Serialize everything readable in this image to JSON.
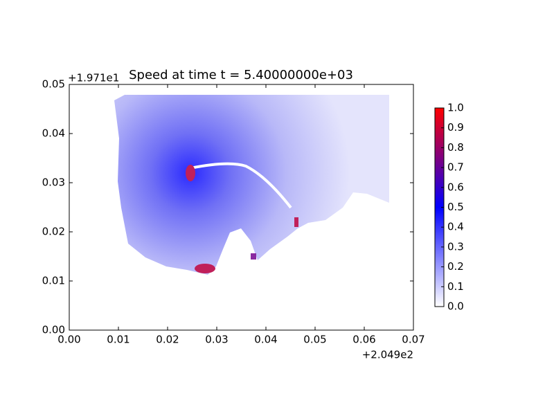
{
  "chart_data": {
    "type": "heatmap",
    "title": "Speed at time t = 5.40000000e+03",
    "x_offset_label": "+2.049e2",
    "y_offset_label": "+1.971e1",
    "xlim": [
      0,
      0.07
    ],
    "xticks": [
      {
        "value": 0,
        "label": "0.00"
      },
      {
        "value": 0.01,
        "label": "0.01"
      },
      {
        "value": 0.02,
        "label": "0.02"
      },
      {
        "value": 0.03,
        "label": "0.03"
      },
      {
        "value": 0.04,
        "label": "0.04"
      },
      {
        "value": 0.05,
        "label": "0.05"
      },
      {
        "value": 0.06,
        "label": "0.06"
      },
      {
        "value": 0.07,
        "label": "0.07"
      }
    ],
    "ylim": [
      0,
      0.05
    ],
    "yticks": [
      {
        "value": 0,
        "label": "0.00"
      },
      {
        "value": 0.01,
        "label": "0.01"
      },
      {
        "value": 0.02,
        "label": "0.02"
      },
      {
        "value": 0.03,
        "label": "0.03"
      },
      {
        "value": 0.04,
        "label": "0.04"
      },
      {
        "value": 0.05,
        "label": "0.05"
      }
    ],
    "colorbar_lim": [
      0,
      1
    ],
    "colorbar_ticks": [
      {
        "value": 0,
        "label": "0.0"
      },
      {
        "value": 0.1,
        "label": "0.1"
      },
      {
        "value": 0.2,
        "label": "0.2"
      },
      {
        "value": 0.3,
        "label": "0.3"
      },
      {
        "value": 0.4,
        "label": "0.4"
      },
      {
        "value": 0.5,
        "label": "0.5"
      },
      {
        "value": 0.6,
        "label": "0.6"
      },
      {
        "value": 0.7,
        "label": "0.7"
      },
      {
        "value": 0.8,
        "label": "0.8"
      },
      {
        "value": 0.9,
        "label": "0.9"
      },
      {
        "value": 1,
        "label": "1.0"
      }
    ],
    "colormap": [
      "#ffffff",
      "#0000ff",
      "#ff0000"
    ]
  }
}
